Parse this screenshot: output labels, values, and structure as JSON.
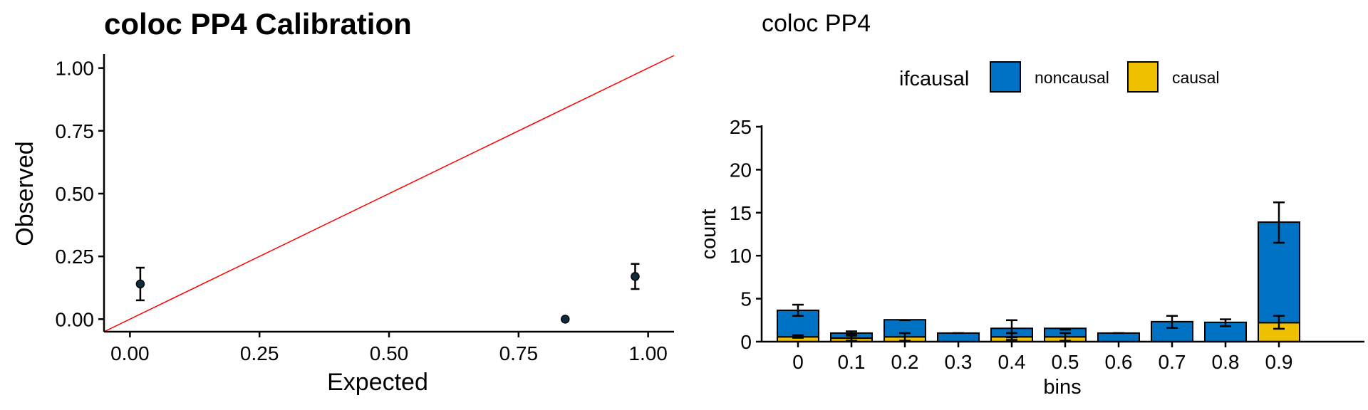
{
  "chart_data": [
    {
      "type": "scatter",
      "title": "coloc PP4 Calibration",
      "xlabel": "Expected",
      "ylabel": "Observed",
      "xlim": [
        -0.05,
        1.05
      ],
      "ylim": [
        -0.05,
        1.05
      ],
      "xticks": [
        "0.00",
        "0.25",
        "0.50",
        "0.75",
        "1.00"
      ],
      "yticks": [
        "0.00",
        "0.25",
        "0.50",
        "0.75",
        "1.00"
      ],
      "points": [
        {
          "x": 0.02,
          "y": 0.14,
          "ylow": 0.075,
          "yhigh": 0.205
        },
        {
          "x": 0.84,
          "y": 0.0,
          "ylow": 0.0,
          "yhigh": 0.0
        },
        {
          "x": 0.975,
          "y": 0.17,
          "ylow": 0.12,
          "yhigh": 0.22
        }
      ],
      "reference_line": {
        "slope": 1,
        "intercept": 0,
        "color": "#ff0000"
      },
      "point_color": "#0d2d3d",
      "grid": false
    },
    {
      "type": "bar",
      "stacked": true,
      "title": "coloc PP4",
      "xlabel": "bins",
      "ylabel": "count",
      "ylim": [
        0,
        25
      ],
      "yticks": [
        "0",
        "5",
        "10",
        "15",
        "20",
        "25"
      ],
      "categories": [
        "0",
        "0.1",
        "0.2",
        "0.3",
        "0.4",
        "0.5",
        "0.6",
        "0.7",
        "0.8",
        "0.9"
      ],
      "legend": {
        "title": "ifcausal",
        "position": "top"
      },
      "series": [
        {
          "name": "noncausal",
          "color": "#0072c4",
          "values": [
            3.1,
            0.6,
            2.0,
            1.0,
            1.0,
            1.0,
            1.0,
            2.33,
            2.25,
            11.7
          ]
        },
        {
          "name": "causal",
          "color": "#efc000",
          "values": [
            0.55,
            0.4,
            0.55,
            0.0,
            0.55,
            0.55,
            0.0,
            0.0,
            0.0,
            2.2
          ]
        }
      ],
      "errorbars_total": [
        {
          "low": 3.0,
          "high": 4.3
        },
        {
          "low": 0.7,
          "high": 1.2
        },
        {
          "low": 2.5,
          "high": 2.5
        },
        {
          "low": 1.0,
          "high": 1.0
        },
        {
          "low": 0.5,
          "high": 2.5
        },
        {
          "low": 1.4,
          "high": 1.5
        },
        {
          "low": 1.0,
          "high": 1.0
        },
        {
          "low": 1.6,
          "high": 3.0
        },
        {
          "low": 1.8,
          "high": 2.6
        },
        {
          "low": 11.5,
          "high": 16.2
        }
      ],
      "errorbars_causal": [
        {
          "low": 0.45,
          "high": 0.75
        },
        {
          "low": 0.1,
          "high": 0.8
        },
        {
          "low": 0.1,
          "high": 1.0
        },
        null,
        {
          "low": 0.2,
          "high": 1.0
        },
        {
          "low": 0.1,
          "high": 1.0
        },
        null,
        null,
        null,
        {
          "low": 1.5,
          "high": 3.0
        }
      ],
      "grid": false
    }
  ]
}
